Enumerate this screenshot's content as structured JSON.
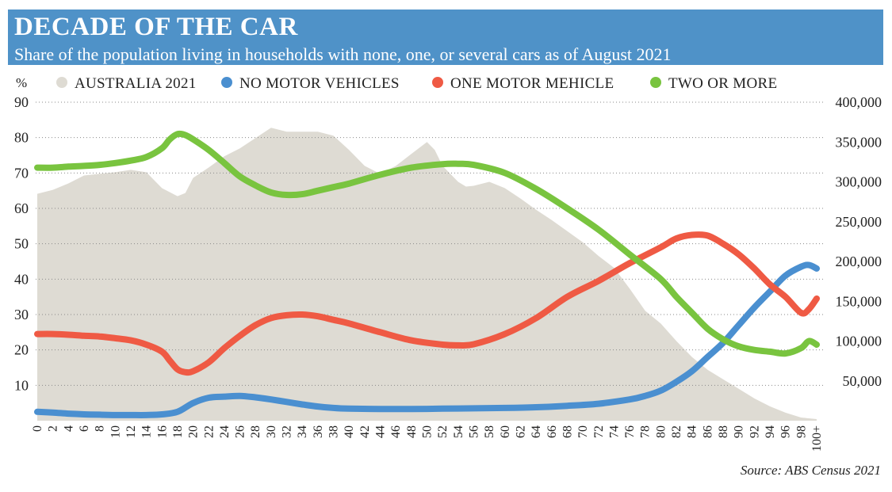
{
  "header": {
    "title": "DECADE OF THE CAR",
    "subtitle": "Share of the population living in households with none, one, or several cars as of August 2021"
  },
  "source": "Source: ABS Census 2021",
  "colors": {
    "banner": "#4f92c8",
    "australia_area": "#dedbd3",
    "no_motor_vehicles": "#4a8fd0",
    "one_motor_vehicle": "#ef5a44",
    "two_or_more": "#79c43f"
  },
  "chart_data": {
    "type": "line",
    "left_axis_unit": "%",
    "ylim_left": [
      0,
      90
    ],
    "ylim_right": [
      0,
      400000
    ],
    "left_ticks": [
      "90",
      "80",
      "70",
      "60",
      "50",
      "40",
      "30",
      "20",
      "10"
    ],
    "right_ticks": [
      "400,000",
      "350,000",
      "300,000",
      "250,000",
      "200,000",
      "150,000",
      "100,000",
      "50,000"
    ],
    "x_tick_labels": [
      "0",
      "2",
      "4",
      "6",
      "8",
      "10",
      "12",
      "14",
      "16",
      "18",
      "20",
      "22",
      "24",
      "26",
      "28",
      "30",
      "32",
      "34",
      "36",
      "38",
      "40",
      "42",
      "44",
      "46",
      "48",
      "50",
      "52",
      "54",
      "56",
      "58",
      "60",
      "62",
      "64",
      "66",
      "68",
      "70",
      "72",
      "74",
      "76",
      "78",
      "80",
      "82",
      "84",
      "86",
      "88",
      "90",
      "92",
      "94",
      "96",
      "98",
      "100+"
    ],
    "legend": [
      "AUSTRALIA 2021",
      "NO MOTOR VEHICLES",
      "ONE MOTOR MEHICLE",
      "TWO OR MORE"
    ],
    "legend_position": "top",
    "grid": "dotted horizontal",
    "area_series": {
      "name": "AUSTRALIA 2021",
      "axis": "right",
      "x": [
        0,
        2,
        4,
        6,
        8,
        10,
        12,
        14,
        16,
        18,
        19,
        20,
        22,
        24,
        26,
        28,
        30,
        32,
        34,
        36,
        38,
        40,
        42,
        44,
        46,
        48,
        50,
        51,
        52,
        54,
        55,
        56,
        58,
        60,
        62,
        64,
        66,
        68,
        70,
        72,
        74,
        76,
        78,
        80,
        82,
        84,
        86,
        88,
        90,
        92,
        94,
        96,
        98,
        100
      ],
      "values": [
        285000,
        290000,
        298000,
        308000,
        310000,
        312000,
        315000,
        312000,
        292000,
        282000,
        286000,
        305000,
        318000,
        332000,
        342000,
        355000,
        368000,
        363000,
        363000,
        363000,
        358000,
        340000,
        320000,
        310000,
        320000,
        335000,
        350000,
        340000,
        320000,
        300000,
        294000,
        295000,
        300000,
        292000,
        279000,
        265000,
        252000,
        238000,
        224000,
        207000,
        192000,
        166000,
        138000,
        122000,
        100000,
        80000,
        64000,
        52000,
        40000,
        28000,
        18000,
        10000,
        4000,
        2000
      ]
    },
    "series": [
      {
        "name": "NO MOTOR VEHICLES",
        "axis": "left",
        "x": [
          0,
          2,
          4,
          6,
          8,
          10,
          12,
          14,
          16,
          18,
          20,
          22,
          24,
          26,
          28,
          30,
          32,
          34,
          36,
          38,
          40,
          44,
          48,
          52,
          56,
          60,
          64,
          68,
          72,
          76,
          78,
          80,
          82,
          84,
          86,
          88,
          90,
          92,
          94,
          96,
          98,
          99,
          100
        ],
        "values": [
          2.5,
          2.3,
          2.0,
          1.8,
          1.7,
          1.6,
          1.6,
          1.6,
          1.8,
          2.5,
          5.0,
          6.5,
          6.8,
          7.0,
          6.6,
          6.0,
          5.3,
          4.6,
          4.0,
          3.6,
          3.4,
          3.3,
          3.3,
          3.4,
          3.5,
          3.6,
          3.8,
          4.2,
          4.8,
          6.0,
          7.0,
          8.5,
          11.0,
          14.0,
          18.0,
          22.0,
          27.0,
          32.0,
          36.5,
          41.0,
          43.5,
          44.0,
          43.0
        ]
      },
      {
        "name": "ONE MOTOR MEHICLE",
        "axis": "left",
        "x": [
          0,
          2,
          4,
          6,
          8,
          10,
          12,
          14,
          16,
          17,
          18,
          19,
          20,
          22,
          24,
          26,
          28,
          30,
          32,
          34,
          36,
          38,
          40,
          44,
          48,
          52,
          54,
          56,
          60,
          64,
          68,
          72,
          76,
          80,
          82,
          84,
          86,
          88,
          90,
          92,
          94,
          96,
          98,
          99,
          100
        ],
        "values": [
          24.5,
          24.5,
          24.3,
          24.0,
          23.8,
          23.3,
          22.7,
          21.5,
          19.5,
          17.0,
          14.5,
          13.7,
          14.0,
          16.5,
          20.5,
          24.0,
          27.0,
          29.0,
          29.8,
          30.0,
          29.5,
          28.5,
          27.5,
          25.0,
          22.7,
          21.5,
          21.3,
          21.6,
          24.5,
          29.0,
          35.0,
          39.5,
          44.5,
          49.0,
          51.5,
          52.5,
          52.3,
          50.0,
          47.0,
          43.0,
          38.5,
          35.0,
          30.5,
          31.5,
          34.5
        ]
      },
      {
        "name": "TWO OR MORE",
        "axis": "left",
        "x": [
          0,
          2,
          4,
          6,
          8,
          10,
          12,
          14,
          16,
          17,
          18,
          19,
          20,
          22,
          24,
          26,
          28,
          30,
          32,
          34,
          36,
          38,
          40,
          44,
          48,
          52,
          54,
          56,
          60,
          64,
          68,
          72,
          76,
          80,
          82,
          84,
          86,
          88,
          90,
          92,
          94,
          96,
          98,
          99,
          100
        ],
        "values": [
          71.5,
          71.5,
          71.8,
          72.0,
          72.3,
          72.8,
          73.5,
          74.5,
          77.0,
          79.5,
          81.0,
          80.7,
          79.5,
          76.5,
          72.8,
          69.0,
          66.5,
          64.5,
          63.8,
          64.0,
          65.0,
          66.0,
          67.0,
          69.5,
          71.5,
          72.5,
          72.6,
          72.3,
          70.0,
          65.5,
          60.0,
          54.0,
          47.0,
          40.0,
          35.0,
          30.5,
          26.0,
          23.0,
          21.0,
          20.0,
          19.5,
          19.0,
          20.5,
          22.5,
          21.5
        ]
      }
    ]
  }
}
